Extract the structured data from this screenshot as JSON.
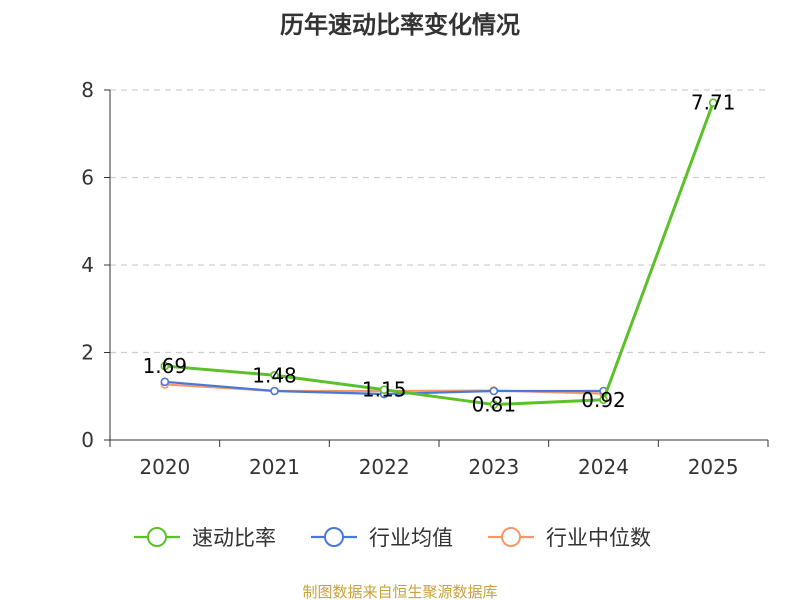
{
  "chart_data": {
    "type": "line",
    "title": "历年速动比率变化情况",
    "categories": [
      "2020",
      "2021",
      "2022",
      "2023",
      "2024",
      "2025"
    ],
    "ylim": [
      0,
      8
    ],
    "yticks": [
      "0",
      "2",
      "4",
      "6",
      "8"
    ],
    "grid": true,
    "legend_position": "bottom",
    "series": [
      {
        "name": "速动比率",
        "color": "#5cc02a",
        "values": [
          1.69,
          1.48,
          1.15,
          0.81,
          0.92,
          7.71
        ],
        "labels": [
          "1.69",
          "1.48",
          "1.15",
          "0.81",
          "0.92",
          "7.71"
        ]
      },
      {
        "name": "行业均值",
        "color": "#4a78d8",
        "values": [
          1.33,
          1.12,
          1.05,
          1.12,
          1.12,
          null
        ]
      },
      {
        "name": "行业中位数",
        "color": "#f39a6b",
        "values": [
          1.27,
          1.12,
          1.12,
          1.13,
          1.06,
          null
        ]
      }
    ]
  },
  "source": "制图数据来自恒生聚源数据库"
}
